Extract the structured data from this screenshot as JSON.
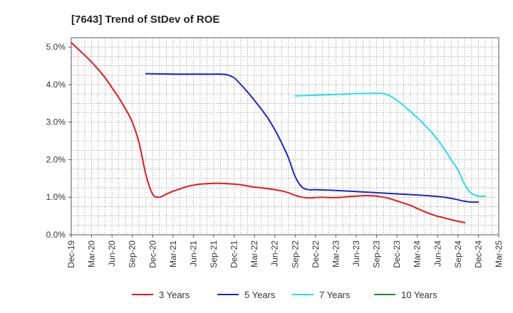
{
  "chart_data": {
    "type": "line",
    "title": "[7643]  Trend of StDev of ROE",
    "xlabel": "",
    "ylabel": "",
    "x_tick_labels": [
      "Dec-19",
      "Mar-20",
      "Jun-20",
      "Sep-20",
      "Dec-20",
      "Mar-21",
      "Jun-21",
      "Sep-21",
      "Dec-21",
      "Mar-22",
      "Jun-22",
      "Sep-22",
      "Dec-22",
      "Mar-23",
      "Jun-23",
      "Sep-23",
      "Dec-23",
      "Mar-24",
      "Jun-24",
      "Sep-24",
      "Dec-24",
      "Mar-25"
    ],
    "y_tick_labels": [
      "0.0%",
      "1.0%",
      "2.0%",
      "3.0%",
      "4.0%",
      "5.0%"
    ],
    "ylim": [
      0,
      5.25
    ],
    "grid": true,
    "legend_position": "bottom",
    "series": [
      {
        "name": "3 Years",
        "color": "#e8191a",
        "values": [
          [
            "Dec-19",
            5.12
          ],
          [
            "Jan-20",
            4.95
          ],
          [
            "Feb-20",
            4.78
          ],
          [
            "Mar-20",
            4.6
          ],
          [
            "Apr-20",
            4.4
          ],
          [
            "May-20",
            4.18
          ],
          [
            "Jun-20",
            3.92
          ],
          [
            "Jul-20",
            3.65
          ],
          [
            "Aug-20",
            3.35
          ],
          [
            "Sep-20",
            3.0
          ],
          [
            "Oct-20",
            2.45
          ],
          [
            "Nov-20",
            1.6
          ],
          [
            "Dec-20",
            1.08
          ],
          [
            "Jan-21",
            1.0
          ],
          [
            "Feb-21",
            1.08
          ],
          [
            "Mar-21",
            1.16
          ],
          [
            "Apr-21",
            1.22
          ],
          [
            "May-21",
            1.28
          ],
          [
            "Jun-21",
            1.32
          ],
          [
            "Jul-21",
            1.35
          ],
          [
            "Aug-21",
            1.36
          ],
          [
            "Sep-21",
            1.37
          ],
          [
            "Oct-21",
            1.37
          ],
          [
            "Nov-21",
            1.36
          ],
          [
            "Dec-21",
            1.35
          ],
          [
            "Jan-22",
            1.33
          ],
          [
            "Feb-22",
            1.3
          ],
          [
            "Mar-22",
            1.27
          ],
          [
            "Apr-22",
            1.25
          ],
          [
            "May-22",
            1.23
          ],
          [
            "Jun-22",
            1.2
          ],
          [
            "Jul-22",
            1.17
          ],
          [
            "Aug-22",
            1.12
          ],
          [
            "Sep-22",
            1.05
          ],
          [
            "Oct-22",
            1.0
          ],
          [
            "Nov-22",
            0.98
          ],
          [
            "Dec-22",
            0.99
          ],
          [
            "Jan-23",
            1.0
          ],
          [
            "Feb-23",
            0.99
          ],
          [
            "Mar-23",
            0.99
          ],
          [
            "Apr-23",
            1.0
          ],
          [
            "May-23",
            1.02
          ],
          [
            "Jun-23",
            1.03
          ],
          [
            "Jul-23",
            1.04
          ],
          [
            "Aug-23",
            1.04
          ],
          [
            "Sep-23",
            1.03
          ],
          [
            "Oct-23",
            1.0
          ],
          [
            "Nov-23",
            0.96
          ],
          [
            "Dec-23",
            0.9
          ],
          [
            "Jan-24",
            0.84
          ],
          [
            "Feb-24",
            0.78
          ],
          [
            "Mar-24",
            0.7
          ],
          [
            "Apr-24",
            0.62
          ],
          [
            "May-24",
            0.55
          ],
          [
            "Jun-24",
            0.49
          ],
          [
            "Jul-24",
            0.45
          ],
          [
            "Aug-24",
            0.4
          ],
          [
            "Sep-24",
            0.36
          ],
          [
            "Oct-24",
            0.32
          ]
        ]
      },
      {
        "name": "5 Years",
        "color": "#1b24cc",
        "values": [
          [
            "Nov-20",
            4.29
          ],
          [
            "Dec-20",
            4.29
          ],
          [
            "Mar-21",
            4.28
          ],
          [
            "Jun-21",
            4.28
          ],
          [
            "Sep-21",
            4.28
          ],
          [
            "Oct-21",
            4.28
          ],
          [
            "Nov-21",
            4.26
          ],
          [
            "Dec-21",
            4.18
          ],
          [
            "Jan-22",
            4.0
          ],
          [
            "Feb-22",
            3.8
          ],
          [
            "Mar-22",
            3.58
          ],
          [
            "Apr-22",
            3.35
          ],
          [
            "May-22",
            3.1
          ],
          [
            "Jun-22",
            2.8
          ],
          [
            "Jul-22",
            2.45
          ],
          [
            "Aug-22",
            2.05
          ],
          [
            "Sep-22",
            1.55
          ],
          [
            "Oct-22",
            1.27
          ],
          [
            "Nov-22",
            1.2
          ],
          [
            "Dec-22",
            1.2
          ],
          [
            "Mar-23",
            1.18
          ],
          [
            "Jun-23",
            1.15
          ],
          [
            "Sep-23",
            1.12
          ],
          [
            "Dec-23",
            1.09
          ],
          [
            "Mar-24",
            1.06
          ],
          [
            "Jun-24",
            1.02
          ],
          [
            "Jul-24",
            1.0
          ],
          [
            "Aug-24",
            0.97
          ],
          [
            "Sep-24",
            0.93
          ],
          [
            "Oct-24",
            0.89
          ],
          [
            "Nov-24",
            0.87
          ],
          [
            "Dec-24",
            0.87
          ]
        ]
      },
      {
        "name": "7 Years",
        "color": "#21e0ea",
        "values": [
          [
            "Sep-22",
            3.7
          ],
          [
            "Dec-22",
            3.72
          ],
          [
            "Mar-23",
            3.74
          ],
          [
            "Jun-23",
            3.76
          ],
          [
            "Sep-23",
            3.77
          ],
          [
            "Oct-23",
            3.76
          ],
          [
            "Nov-23",
            3.7
          ],
          [
            "Dec-23",
            3.58
          ],
          [
            "Jan-24",
            3.44
          ],
          [
            "Feb-24",
            3.28
          ],
          [
            "Mar-24",
            3.12
          ],
          [
            "Apr-24",
            2.94
          ],
          [
            "May-24",
            2.75
          ],
          [
            "Jun-24",
            2.53
          ],
          [
            "Jul-24",
            2.28
          ],
          [
            "Aug-24",
            2.0
          ],
          [
            "Sep-24",
            1.72
          ],
          [
            "Oct-24",
            1.33
          ],
          [
            "Nov-24",
            1.1
          ],
          [
            "Dec-24",
            1.03
          ],
          [
            "Jan-25",
            1.03
          ]
        ]
      },
      {
        "name": "10 Years",
        "color": "#1f8a1f",
        "values": []
      }
    ]
  }
}
